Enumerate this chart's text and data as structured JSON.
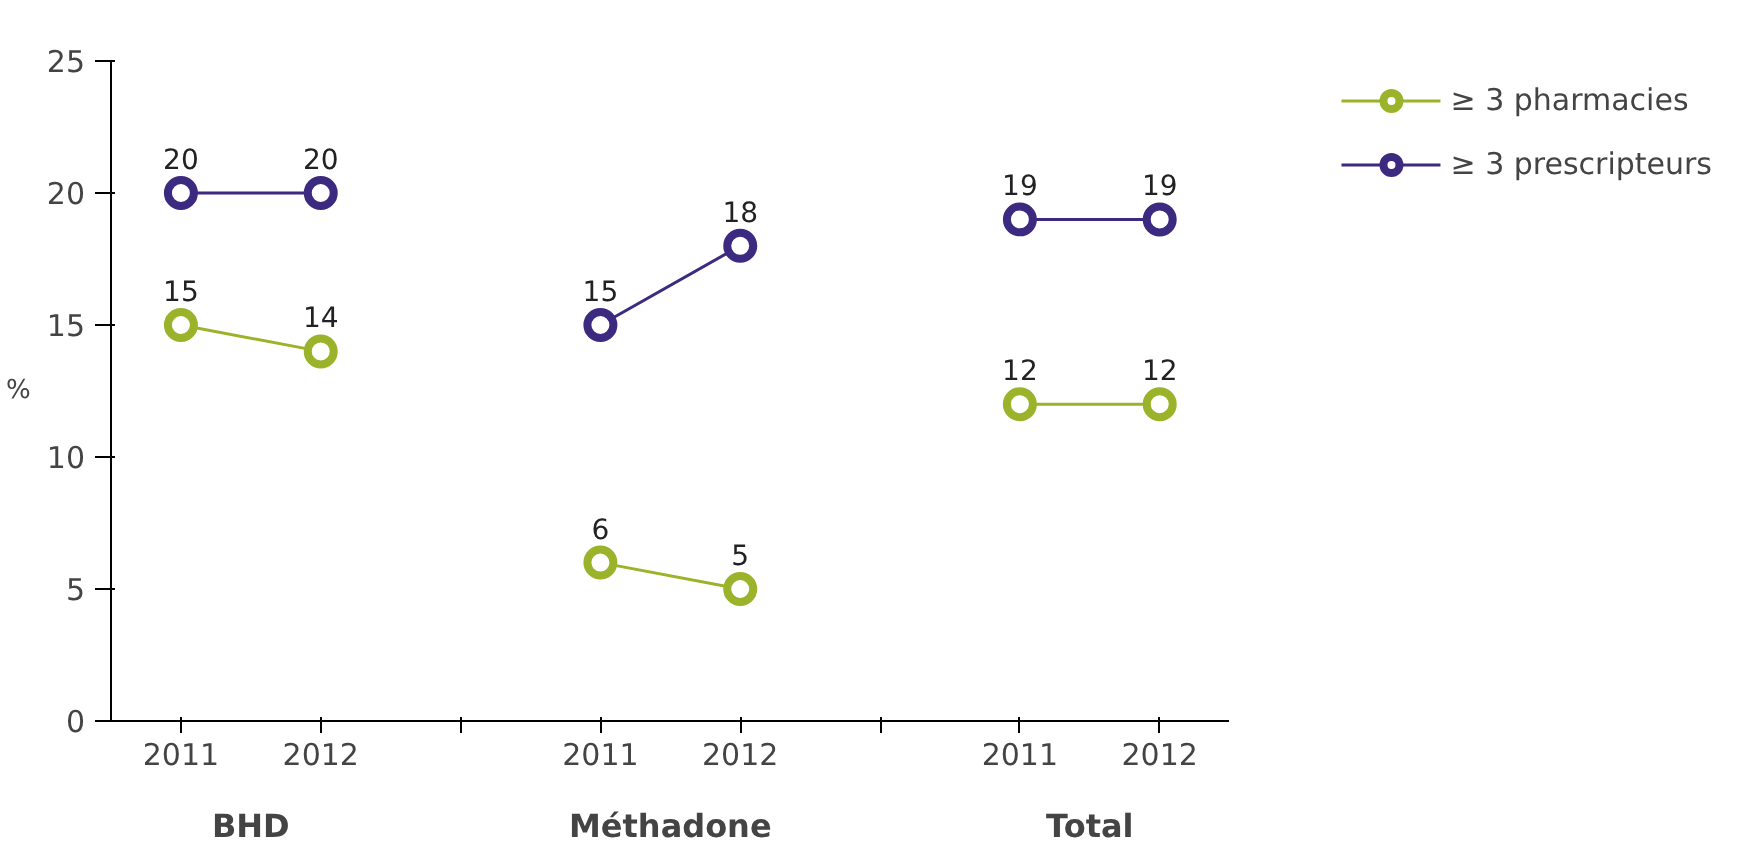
{
  "chart_data": {
    "type": "line",
    "ylabel": "%",
    "categories": [
      "2011",
      "2012",
      null,
      "2011",
      "2012",
      null,
      "2011",
      "2012"
    ],
    "annotations": [
      "BHD",
      "Méthadone",
      "Total"
    ],
    "series": [
      {
        "name": "≥ 3 pharmacies",
        "color": "#9ab32a",
        "values": [
          15,
          14,
          null,
          6,
          5,
          null,
          12,
          12
        ]
      },
      {
        "name": "≥ 3 prescripteurs",
        "color": "#3b2a80",
        "values": [
          20,
          20,
          null,
          15,
          18,
          null,
          19,
          19
        ]
      }
    ],
    "ylim": [
      0,
      25
    ],
    "yticks": [
      0,
      5,
      10,
      15,
      20,
      25
    ],
    "grid": false,
    "legend": "top right",
    "marker": "circle",
    "data_labels": true
  }
}
